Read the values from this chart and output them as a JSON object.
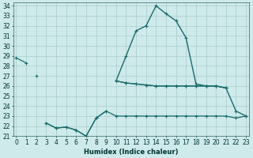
{
  "xlabel": "Humidex (Indice chaleur)",
  "x": [
    0,
    1,
    2,
    3,
    4,
    5,
    6,
    7,
    8,
    9,
    10,
    11,
    12,
    13,
    14,
    15,
    16,
    17,
    18,
    19,
    20,
    21,
    22,
    23
  ],
  "line_top": [
    28.8,
    28.3,
    null,
    null,
    null,
    null,
    null,
    null,
    null,
    null,
    26.5,
    26.3,
    26.2,
    26.1,
    26.0,
    26.0,
    26.0,
    26.0,
    26.0,
    26.0,
    26.0,
    25.8,
    null,
    null
  ],
  "line_mid": [
    null,
    null,
    27.0,
    null,
    null,
    null,
    null,
    null,
    null,
    null,
    26.5,
    26.3,
    26.2,
    26.1,
    26.0,
    26.0,
    26.0,
    26.0,
    26.0,
    26.0,
    26.0,
    25.8,
    null,
    null
  ],
  "line_peak": [
    null,
    null,
    null,
    null,
    null,
    null,
    null,
    null,
    null,
    null,
    26.5,
    29.0,
    31.5,
    32.0,
    34.0,
    33.2,
    32.5,
    30.8,
    26.2,
    26.0,
    26.0,
    25.8,
    23.5,
    23.0
  ],
  "line_bot_left": [
    null,
    null,
    null,
    22.3,
    21.8,
    21.9,
    21.6,
    21.0,
    22.8,
    23.5,
    null,
    null,
    null,
    null,
    null,
    null,
    null,
    null,
    null,
    null,
    null,
    null,
    null,
    null
  ],
  "line_bot": [
    null,
    null,
    null,
    22.3,
    21.8,
    21.9,
    21.6,
    21.0,
    22.8,
    23.5,
    23.0,
    23.0,
    23.0,
    23.0,
    23.0,
    23.0,
    23.0,
    23.0,
    23.0,
    23.0,
    23.0,
    23.0,
    22.8,
    23.0
  ],
  "background_color": "#ceeaea",
  "grid_color": "#aacccc",
  "line_color": "#1a6b6b",
  "ylim": [
    21,
    34.3
  ],
  "xlim": [
    -0.3,
    23.3
  ],
  "yticks": [
    21,
    22,
    23,
    24,
    25,
    26,
    27,
    28,
    29,
    30,
    31,
    32,
    33,
    34
  ],
  "xticks": [
    0,
    1,
    2,
    3,
    4,
    5,
    6,
    7,
    8,
    9,
    10,
    11,
    12,
    13,
    14,
    15,
    16,
    17,
    18,
    19,
    20,
    21,
    22,
    23
  ],
  "tick_fontsize": 5.5,
  "xlabel_fontsize": 6.0
}
